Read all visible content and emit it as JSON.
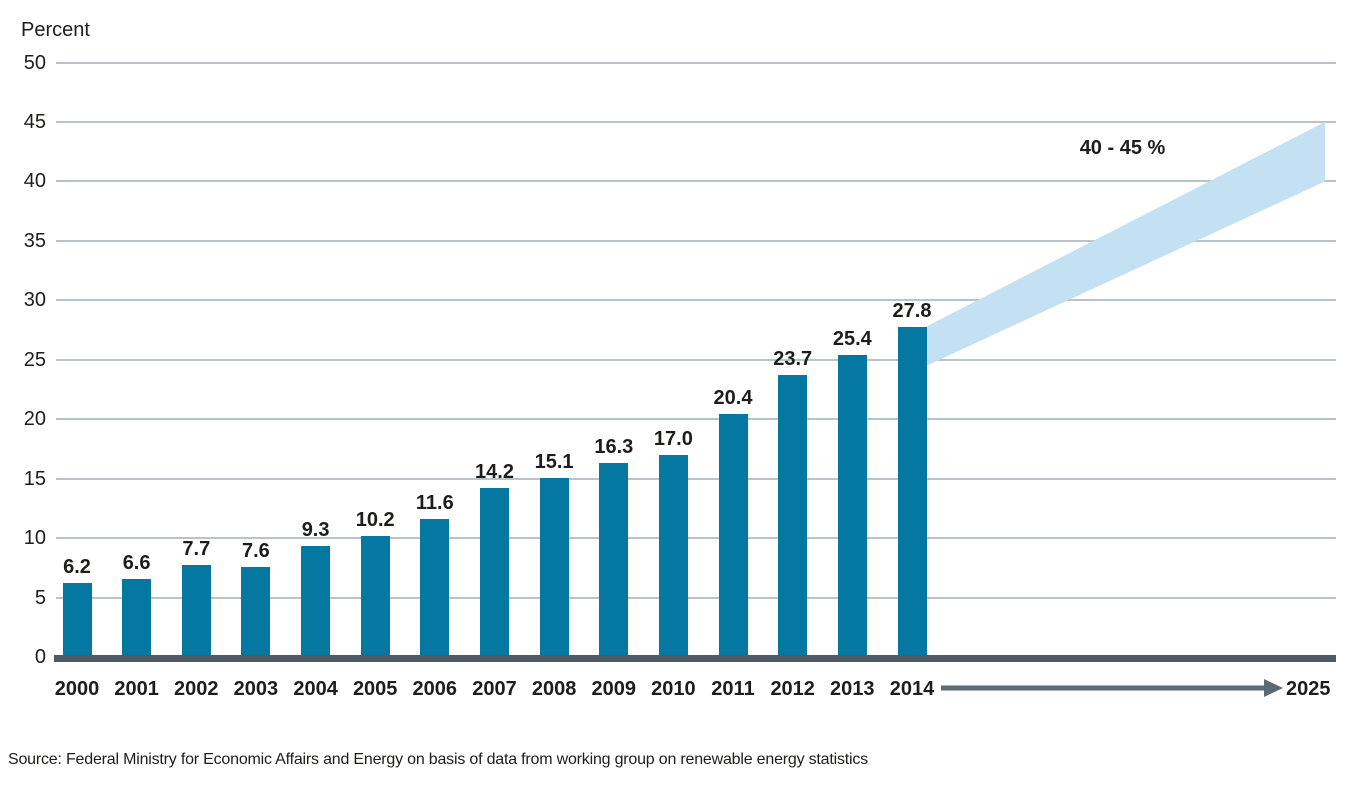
{
  "chart_data": {
    "type": "bar",
    "title": "",
    "ylabel": "Percent",
    "xlabel": "",
    "categories": [
      "2000",
      "2001",
      "2002",
      "2003",
      "2004",
      "2005",
      "2006",
      "2007",
      "2008",
      "2009",
      "2010",
      "2011",
      "2012",
      "2013",
      "2014"
    ],
    "values": [
      6.2,
      6.6,
      7.7,
      7.6,
      9.3,
      10.2,
      11.6,
      14.2,
      15.1,
      16.3,
      17.0,
      20.4,
      23.7,
      25.4,
      27.8
    ],
    "value_labels": [
      "6.2",
      "6.6",
      "7.7",
      "7.6",
      "9.3",
      "10.2",
      "11.6",
      "14.2",
      "15.1",
      "16.3",
      "17.0",
      "20.4",
      "23.7",
      "25.4",
      "27.8"
    ],
    "ylim": [
      0,
      50
    ],
    "ytick_step": 5,
    "grid": "horizontal-only",
    "legend": "none",
    "projection": {
      "label": "40 - 45 %",
      "end_year": "2025",
      "start_category": "2014",
      "start_range": [
        24.5,
        27.8
      ],
      "end_range": [
        40,
        45
      ]
    },
    "source": "Source: Federal Ministry for Economic Affairs and Energy on basis of data from working group on renewable energy statistics"
  },
  "colors": {
    "bar": "#0578a1",
    "band": "#c3e1f3",
    "grid": "#b9c3c9",
    "baseline": "#4d5a62",
    "arrow": "#5c6b73",
    "text": "#1d1d1b"
  }
}
